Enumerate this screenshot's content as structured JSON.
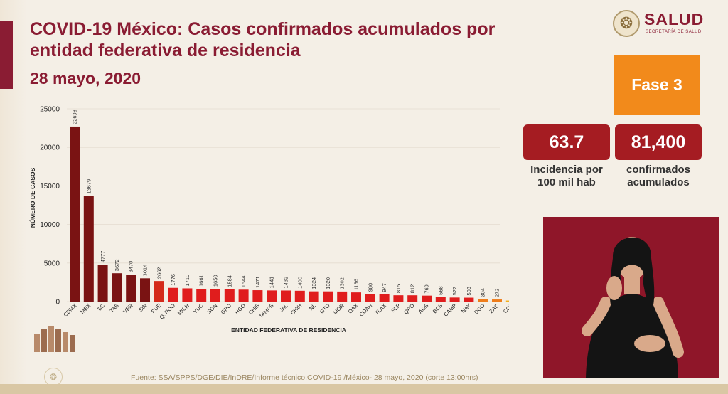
{
  "header": {
    "title": "COVID-19 México: Casos confirmados acumulados por entidad federativa de residencia",
    "date": "28 mayo, 2020"
  },
  "logo": {
    "name": "SALUD",
    "subtitle": "SECRETARÍA DE SALUD",
    "emblem_icon": "mexico-seal-icon"
  },
  "phase": {
    "label": "Fase 3",
    "color": "#f28a1b"
  },
  "kpis": [
    {
      "value": "63.7",
      "label_line1": "Incidencia por",
      "label_line2": "100 mil hab"
    },
    {
      "value": "81,400",
      "label_line1": "confirmados",
      "label_line2": "acumulados"
    }
  ],
  "source": "Fuente: SSA/SPPS/DGE/DIE/InDRE/Informe técnico.COVID-19 /México- 28 mayo, 2020 (corte 13:00hrs)",
  "colors": {
    "accent": "#8a1c33",
    "kpi": "#a51c22",
    "bar_dark": "#7a1313",
    "bar_red": "#e01d1d",
    "bar_orange": "#ee7d1b",
    "bar_yellow": "#f2b01e"
  },
  "chart_data": {
    "type": "bar",
    "title": "",
    "xlabel": "ENTIDAD FEDERATIVA DE RESIDENCIA",
    "ylabel": "NÚMERO DE CASOS",
    "ylim": [
      0,
      25000
    ],
    "yticks": [
      0,
      5000,
      10000,
      15000,
      20000,
      25000
    ],
    "grid": true,
    "categories": [
      "CDMX",
      "MEX",
      "BC",
      "TAB",
      "VER",
      "SIN",
      "PUE",
      "Q. ROO",
      "MICH",
      "YUC",
      "SON",
      "GRO",
      "HGO",
      "CHIS",
      "TAMPS",
      "JAL",
      "CHIH",
      "NL",
      "GTO",
      "MOR",
      "OAX",
      "COAH",
      "TLAX",
      "SLP",
      "QRO",
      "AGS",
      "BCS",
      "CAMP",
      "NAY",
      "DGO",
      "ZAC",
      "COL"
    ],
    "values": [
      22698,
      13679,
      4777,
      3672,
      3470,
      3014,
      2662,
      1776,
      1710,
      1661,
      1650,
      1584,
      1544,
      1471,
      1441,
      1432,
      1400,
      1324,
      1320,
      1302,
      1186,
      980,
      947,
      815,
      812,
      769,
      568,
      522,
      503,
      304,
      272,
      135
    ]
  }
}
